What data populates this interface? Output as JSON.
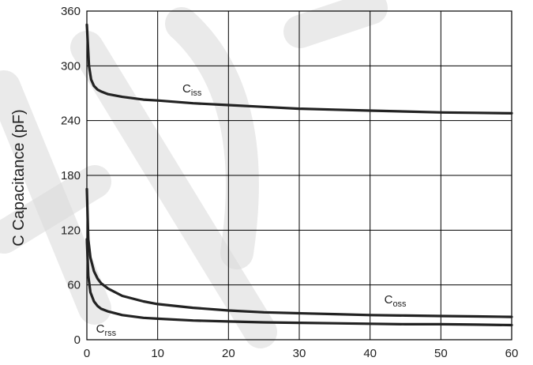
{
  "chart_data": {
    "type": "line",
    "title": "",
    "xlabel": "",
    "ylabel": "C Capacitance (pF)",
    "xlim": [
      0,
      60
    ],
    "ylim": [
      0,
      360
    ],
    "x_ticks": [
      0,
      10,
      20,
      30,
      40,
      50,
      60
    ],
    "y_ticks": [
      0,
      60,
      120,
      180,
      240,
      300,
      360
    ],
    "grid": true,
    "series": [
      {
        "name": "Ciss",
        "label_main": "C",
        "label_sub": "iss",
        "x": [
          0,
          0.3,
          0.6,
          1,
          1.5,
          2,
          3,
          5,
          8,
          10,
          15,
          20,
          25,
          30,
          35,
          40,
          45,
          50,
          55,
          60
        ],
        "y": [
          345,
          300,
          285,
          278,
          274,
          272,
          269,
          266,
          263,
          262,
          259,
          257,
          255,
          253,
          252,
          251,
          250,
          249,
          248.5,
          248
        ]
      },
      {
        "name": "Coss",
        "label_main": "C",
        "label_sub": "oss",
        "x": [
          0,
          0.2,
          0.5,
          1,
          1.5,
          2,
          3,
          5,
          8,
          10,
          15,
          20,
          25,
          30,
          35,
          40,
          45,
          50,
          55,
          60
        ],
        "y": [
          165,
          110,
          90,
          75,
          67,
          62,
          56,
          48,
          42,
          39,
          35,
          32,
          30,
          29,
          28,
          27,
          26.5,
          26,
          25.5,
          25
        ]
      },
      {
        "name": "Crss",
        "label_main": "C",
        "label_sub": "rss",
        "x": [
          0,
          0.2,
          0.5,
          1,
          1.5,
          2,
          3,
          5,
          8,
          10,
          15,
          20,
          25,
          30,
          35,
          40,
          45,
          50,
          55,
          60
        ],
        "y": [
          110,
          70,
          52,
          42,
          37,
          34,
          31,
          27,
          24,
          23,
          21,
          20,
          19,
          18.5,
          18,
          17.5,
          17,
          17,
          16.5,
          16
        ]
      }
    ]
  }
}
